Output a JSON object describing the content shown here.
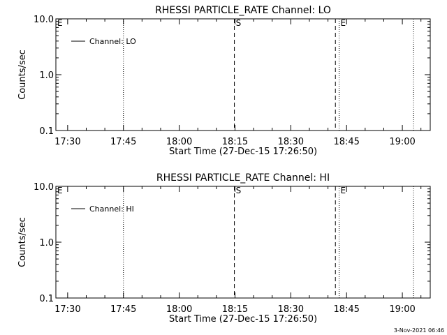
{
  "footer_timestamp": "3-Nov-2021 06:46",
  "chart_data": [
    {
      "type": "line",
      "title": "RHESSI PARTICLE_RATE Channel: LO",
      "xlabel": "Start Time (27-Dec-15 17:26:50)",
      "ylabel": "Counts/sec",
      "y_scale": "log",
      "ylim": [
        0.1,
        10.0
      ],
      "y_ticks": [
        "0.1",
        "1.0",
        "10.0"
      ],
      "xlim": [
        "17:26:50",
        "19:07:30"
      ],
      "x_ticks": [
        "17:30",
        "17:45",
        "18:00",
        "18:15",
        "18:30",
        "18:45",
        "19:00"
      ],
      "legend": {
        "entries": [
          "Channel: LO"
        ],
        "placement": "top-left"
      },
      "grid": false,
      "series": [
        {
          "name": "Channel: LO",
          "values": []
        }
      ],
      "markers": [
        {
          "time": "17:26:50",
          "style": "none",
          "label": "E"
        },
        {
          "time": "17:45:00",
          "style": "dotted",
          "label": ""
        },
        {
          "time": "18:14:50",
          "style": "dashed",
          "label": "S"
        },
        {
          "time": "18:42:00",
          "style": "dashed",
          "label": ""
        },
        {
          "time": "18:43:00",
          "style": "dotted",
          "label": "E"
        },
        {
          "time": "19:03:00",
          "style": "dotted",
          "label": ""
        }
      ]
    },
    {
      "type": "line",
      "title": "RHESSI PARTICLE_RATE Channel: HI",
      "xlabel": "Start Time (27-Dec-15 17:26:50)",
      "ylabel": "Counts/sec",
      "y_scale": "log",
      "ylim": [
        0.1,
        10.0
      ],
      "y_ticks": [
        "0.1",
        "1.0",
        "10.0"
      ],
      "xlim": [
        "17:26:50",
        "19:07:30"
      ],
      "x_ticks": [
        "17:30",
        "17:45",
        "18:00",
        "18:15",
        "18:30",
        "18:45",
        "19:00"
      ],
      "legend": {
        "entries": [
          "Channel: HI"
        ],
        "placement": "top-left"
      },
      "grid": false,
      "series": [
        {
          "name": "Channel: HI",
          "values": []
        }
      ],
      "markers": [
        {
          "time": "17:26:50",
          "style": "none",
          "label": "E"
        },
        {
          "time": "17:45:00",
          "style": "dotted",
          "label": ""
        },
        {
          "time": "18:14:50",
          "style": "dashed",
          "label": "S"
        },
        {
          "time": "18:42:00",
          "style": "dashed",
          "label": ""
        },
        {
          "time": "18:43:00",
          "style": "dotted",
          "label": "E"
        },
        {
          "time": "19:03:00",
          "style": "dotted",
          "label": ""
        }
      ]
    }
  ]
}
